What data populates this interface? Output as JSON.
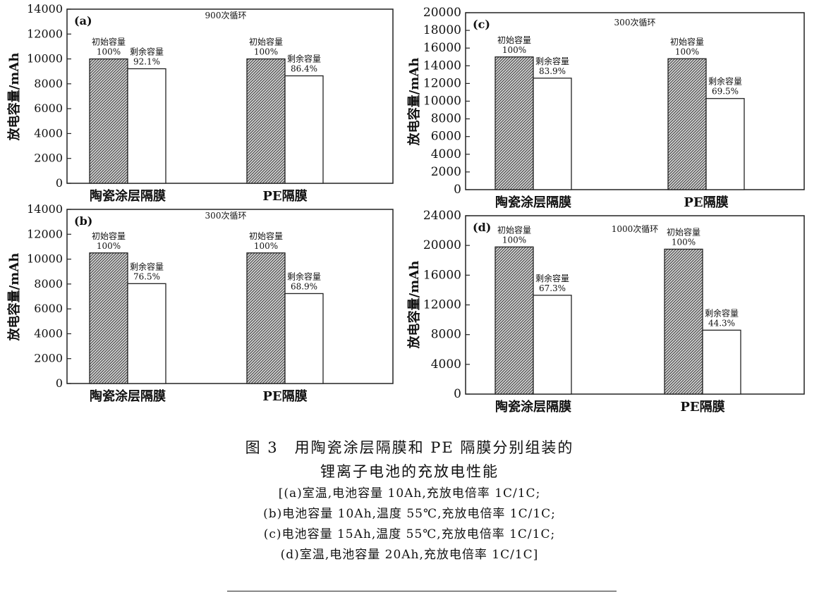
{
  "chart_data": [
    {
      "type": "bar",
      "panel": "(a)",
      "annotation": "900次循环",
      "categories": [
        "陶瓷涂层隔膜",
        "PE隔膜"
      ],
      "ylabel": "放电容量/mAh",
      "ylim": [
        0,
        14000
      ],
      "yticks": [
        0,
        2000,
        4000,
        6000,
        8000,
        10000,
        12000,
        14000
      ],
      "series": [
        {
          "values": [
            10000,
            10000
          ],
          "labels": [
            "初始容量\n100%",
            "初始容量\n100%"
          ],
          "fill": "hatched"
        },
        {
          "values": [
            9210,
            8640
          ],
          "labels": [
            "剩余容量\n92.1%",
            "剩余容量\n86.4%"
          ],
          "fill": "white"
        }
      ]
    },
    {
      "type": "bar",
      "panel": "(b)",
      "annotation": "300次循环",
      "categories": [
        "陶瓷涂层隔膜",
        "PE隔膜"
      ],
      "ylabel": "放电容量/mAh",
      "ylim": [
        0,
        14000
      ],
      "yticks": [
        0,
        2000,
        4000,
        6000,
        8000,
        10000,
        12000,
        14000
      ],
      "series": [
        {
          "values": [
            10500,
            10500
          ],
          "labels": [
            "初始容量\n100%",
            "初始容量\n100%"
          ],
          "fill": "hatched"
        },
        {
          "values": [
            8030,
            7230
          ],
          "labels": [
            "剩余容量\n76.5%",
            "剩余容量\n68.9%"
          ],
          "fill": "white"
        }
      ]
    },
    {
      "type": "bar",
      "panel": "(c)",
      "annotation": "300次循环",
      "categories": [
        "陶瓷涂层隔膜",
        "PE隔膜"
      ],
      "ylabel": "放电容量/mAh",
      "ylim": [
        0,
        20000
      ],
      "yticks": [
        0,
        2000,
        4000,
        6000,
        8000,
        10000,
        12000,
        14000,
        16000,
        18000,
        20000
      ],
      "series": [
        {
          "values": [
            15000,
            14800
          ],
          "labels": [
            "初始容量\n100%",
            "初始容量\n100%"
          ],
          "fill": "hatched"
        },
        {
          "values": [
            12600,
            10300
          ],
          "labels": [
            "剩余容量\n83.9%",
            "剩余容量\n69.5%"
          ],
          "fill": "white"
        }
      ]
    },
    {
      "type": "bar",
      "panel": "(d)",
      "annotation": "1000次循环",
      "categories": [
        "陶瓷涂层隔膜",
        "PE隔膜"
      ],
      "ylabel": "放电容量/mAh",
      "ylim": [
        0,
        24000
      ],
      "yticks": [
        0,
        4000,
        8000,
        12000,
        16000,
        20000,
        24000
      ],
      "series": [
        {
          "values": [
            19800,
            19500
          ],
          "labels": [
            "初始容量\n100%",
            "初始容量\n100%"
          ],
          "fill": "hatched"
        },
        {
          "values": [
            13300,
            8600
          ],
          "labels": [
            "剩余容量\n67.3%",
            "剩余容量\n44.3%"
          ],
          "fill": "white"
        }
      ]
    }
  ],
  "caption": {
    "title_line1": "图 3　用陶瓷涂层隔膜和 PE 隔膜分别组装的",
    "title_line2": "锂离子电池的充放电性能",
    "notes": [
      "[(a)室温,电池容量 10Ah,充放电倍率 1C/1C;",
      "(b)电池容量 10Ah,温度 55℃,充放电倍率 1C/1C;",
      "(c)电池容量 15Ah,温度 55℃,充放电倍率 1C/1C;",
      "(d)室温,电池容量 20Ah,充放电倍率 1C/1C]"
    ]
  }
}
